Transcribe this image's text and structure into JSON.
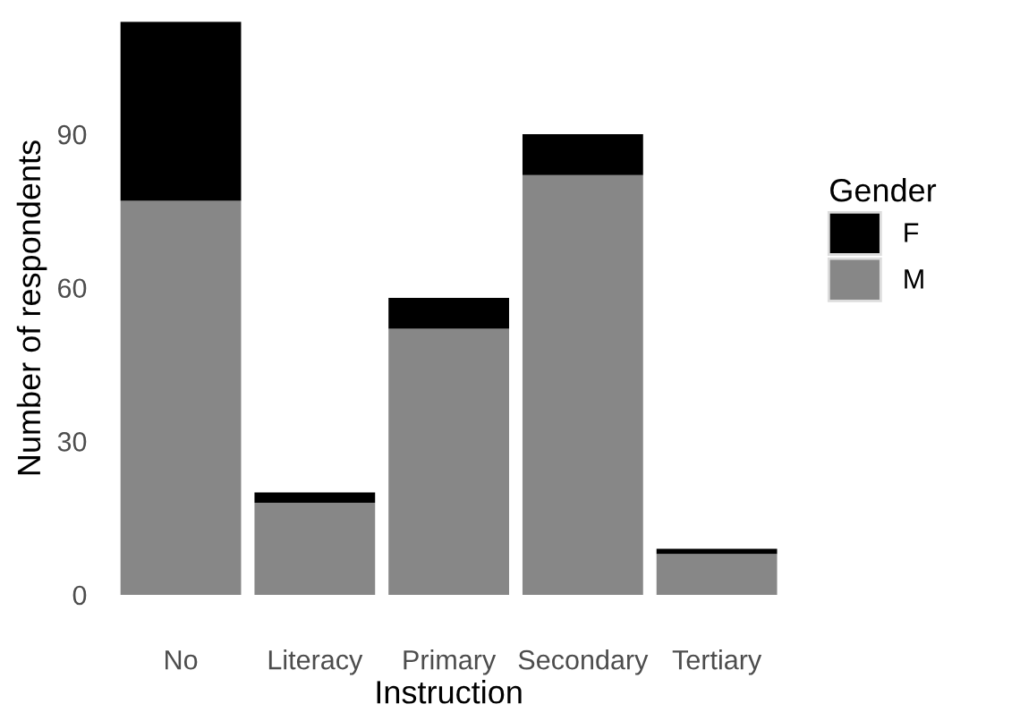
{
  "chart_data": {
    "type": "bar",
    "stacked": true,
    "xlabel": "Instruction",
    "ylabel": "Number of respondents",
    "legend_title": "Gender",
    "legend": "right",
    "categories": [
      "No",
      "Literacy",
      "Primary",
      "Secondary",
      "Tertiary"
    ],
    "series": [
      {
        "name": "M",
        "color": "#878787",
        "values": [
          77,
          18,
          52,
          82,
          8
        ]
      },
      {
        "name": "F",
        "color": "#000000",
        "values": [
          35,
          2,
          6,
          8,
          1
        ]
      }
    ],
    "ylim": [
      0,
      112
    ],
    "yticks": [
      0,
      30,
      60,
      90
    ],
    "grid": false
  }
}
